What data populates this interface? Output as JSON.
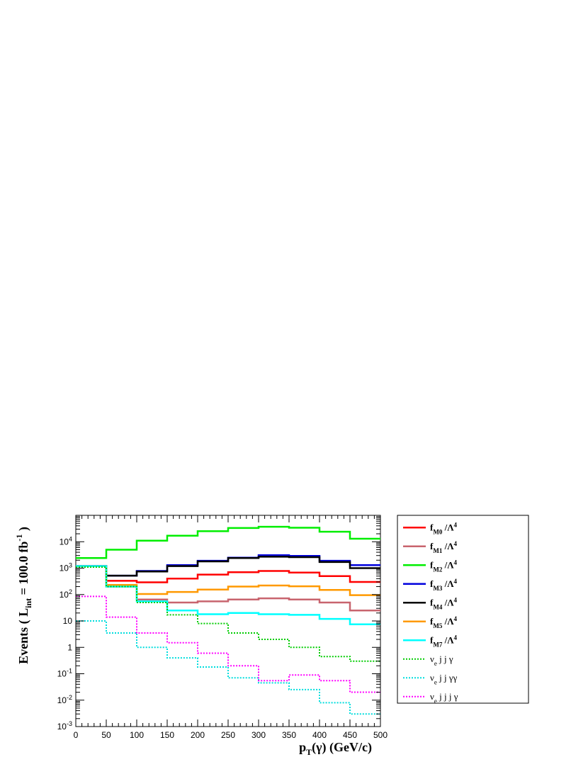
{
  "chart_data": {
    "type": "line",
    "title": "",
    "xlabel": "p_T(γ) (GeV/c)",
    "ylabel": "Events ( L_int = 100.0 fb^-1 )",
    "xlim": [
      0,
      500
    ],
    "ylim": [
      0.001,
      100000
    ],
    "y_scale": "log",
    "x_ticks": [
      "0",
      "50",
      "100",
      "150",
      "200",
      "250",
      "300",
      "350",
      "400",
      "450",
      "500"
    ],
    "y_ticks": [
      "10^-3",
      "10^-2",
      "10^-1",
      "1",
      "10",
      "10^2",
      "10^3",
      "10^4"
    ],
    "bin_edges": [
      0,
      50,
      100,
      150,
      200,
      250,
      300,
      350,
      400,
      450,
      500
    ],
    "histogram_style": "step",
    "legend_position": "right, outside plot",
    "grid": false,
    "series": [
      {
        "name": "f_M0 /Λ^4",
        "color": "#ff0000",
        "style": "solid",
        "values": [
          1200,
          330,
          290,
          400,
          570,
          700,
          780,
          680,
          500,
          300
        ]
      },
      {
        "name": "f_M1 /Λ^4",
        "color": "#c8646e",
        "style": "solid",
        "values": [
          1200,
          200,
          65,
          50,
          55,
          65,
          72,
          65,
          50,
          25
        ]
      },
      {
        "name": "f_M2 /Λ^4",
        "color": "#00ee00",
        "style": "solid",
        "values": [
          2400,
          5000,
          11000,
          17000,
          25000,
          33000,
          37000,
          34000,
          24000,
          13000
        ]
      },
      {
        "name": "f_M3 /Λ^4",
        "color": "#0000dd",
        "style": "solid",
        "values": [
          1200,
          520,
          780,
          1300,
          1900,
          2500,
          3100,
          2900,
          1900,
          1300
        ]
      },
      {
        "name": "f_M4 /Λ^4",
        "color": "#000000",
        "style": "solid",
        "values": [
          1200,
          520,
          750,
          1200,
          1800,
          2400,
          2700,
          2600,
          1700,
          1000
        ]
      },
      {
        "name": "f_M5 /Λ^4",
        "color": "#ff9900",
        "style": "solid",
        "values": [
          1200,
          230,
          105,
          125,
          155,
          200,
          220,
          205,
          150,
          95
        ]
      },
      {
        "name": "f_M7 /Λ^4",
        "color": "#00ffff",
        "style": "solid",
        "values": [
          1200,
          200,
          55,
          25,
          18,
          20,
          18,
          17,
          12,
          7.5
        ]
      },
      {
        "name": "ν_e j j  γ",
        "color": "#00cc00",
        "style": "dotted",
        "values": [
          1100,
          200,
          50,
          17,
          8,
          3.5,
          2,
          1,
          0.45,
          0.3
        ]
      },
      {
        "name": "ν_e j j  γγ",
        "color": "#00dddd",
        "style": "dotted",
        "values": [
          10,
          3.5,
          1,
          0.4,
          0.18,
          0.07,
          0.045,
          0.025,
          0.008,
          0.003
        ]
      },
      {
        "name": "ν_e j j j  γ",
        "color": "#ff00ff",
        "style": "dotted",
        "values": [
          85,
          14,
          3.5,
          1.5,
          0.6,
          0.2,
          0.055,
          0.09,
          0.055,
          0.02
        ]
      }
    ]
  }
}
